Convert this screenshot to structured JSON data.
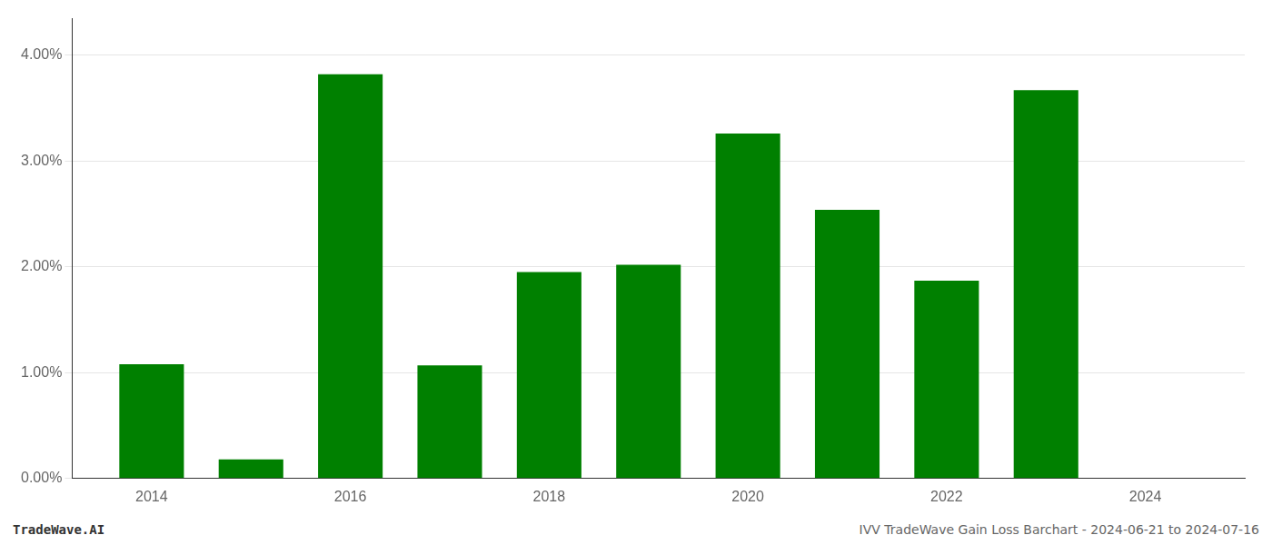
{
  "chart_data": {
    "type": "bar",
    "title": "IVV TradeWave Gain Loss Barchart - 2024-06-21 to 2024-07-16",
    "annotations": [
      "TradeWave.AI"
    ],
    "x": [
      2014,
      2015,
      2016,
      2017,
      2018,
      2019,
      2020,
      2021,
      2022,
      2023
    ],
    "values": [
      0.0108,
      0.0018,
      0.0382,
      0.0107,
      0.0195,
      0.0202,
      0.0326,
      0.0254,
      0.0187,
      0.0367
    ],
    "color": "#008000",
    "xlim": [
      2013.2,
      2025.0
    ],
    "xticks": [
      2014,
      2016,
      2018,
      2020,
      2022,
      2024
    ],
    "ylim": [
      0.0,
      0.0435
    ],
    "yticks": [
      {
        "value": 0.0,
        "label": "0.00%"
      },
      {
        "value": 0.01,
        "label": "1.00%"
      },
      {
        "value": 0.02,
        "label": "2.00%"
      },
      {
        "value": 0.03,
        "label": "3.00%"
      },
      {
        "value": 0.04,
        "label": "4.00%"
      }
    ],
    "grid": true
  }
}
